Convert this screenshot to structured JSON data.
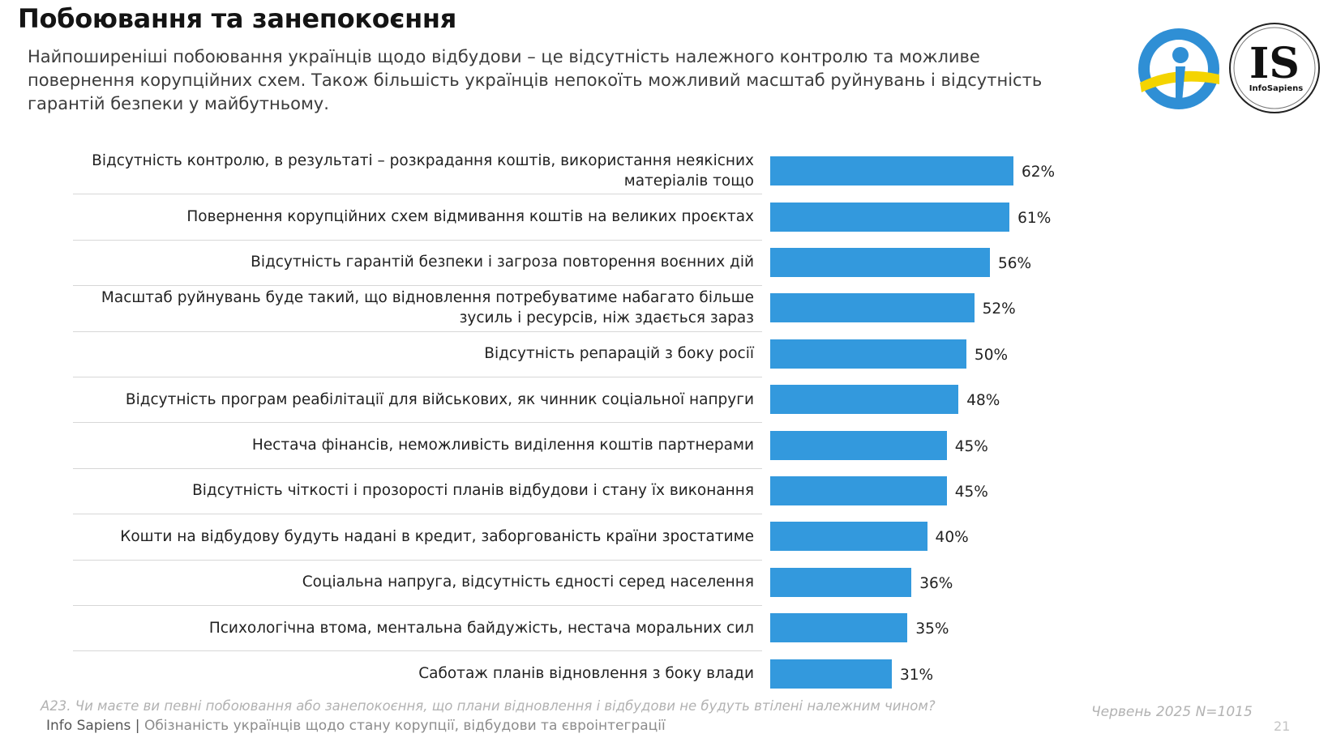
{
  "header": {
    "title": "Побоювання та занепокоєння",
    "subtitle": "Найпоширеніші побоювання українців щодо відбудови – це відсутність належного контролю та можливе повернення корупційних схем. Також більшість українців непокоїть можливий масштаб руйнувань і відсутність гарантій безпеки у майбутньому."
  },
  "logos": {
    "right_logo_letters": "IS",
    "right_logo_caption": "InfoSapiens"
  },
  "colors": {
    "bar": "#3399dd",
    "logo_blue": "#2f8fd5",
    "logo_yellow": "#f4d400"
  },
  "chart_data": {
    "type": "bar",
    "orientation": "horizontal",
    "categories": [
      "Відсутність контролю, в результаті – розкрадання коштів, використання неякісних матеріалів тощо",
      "Повернення корупційних схем відмивання коштів на великих проєктах",
      "Відсутність гарантій безпеки і загроза повторення воєнних дій",
      "Масштаб руйнувань буде такий, що відновлення потребуватиме набагато більше зусиль і ресурсів, ніж здається зараз",
      "Відсутність репарацій з боку росії",
      "Відсутність програм реабілітації для військових, як чинник соціальної напруги",
      "Нестача фінансів, неможливість виділення коштів партнерами",
      "Відсутність чіткості і прозорості планів відбудови і стану їх виконання",
      "Кошти на відбудову будуть надані в кредит, заборгованість країни зростатиме",
      "Соціальна напруга, відсутність єдності серед населення",
      "Психологічна втома, ментальна байдужість, нестача моральних сил",
      "Саботаж планів відновлення з боку влади"
    ],
    "label_lines": [
      [
        "Відсутність контролю, в результаті – розкрадання коштів, використання неякісних",
        "матеріалів тощо"
      ],
      [
        "Повернення корупційних схем відмивання коштів на великих проєктах"
      ],
      [
        "Відсутність гарантій безпеки і загроза повторення воєнних дій"
      ],
      [
        "Масштаб руйнувань буде такий, що відновлення потребуватиме набагато більше",
        "зусиль і ресурсів, ніж здається зараз"
      ],
      [
        "Відсутність репарацій з боку росії"
      ],
      [
        "Відсутність програм реабілітації для військових, як чинник соціальної напруги"
      ],
      [
        "Нестача фінансів, неможливість виділення коштів партнерами"
      ],
      [
        "Відсутність чіткості і прозорості планів відбудови і стану їх виконання"
      ],
      [
        "Кошти на відбудову будуть надані в кредит, заборгованість країни зростатиме"
      ],
      [
        "Соціальна напруга, відсутність єдності серед населення"
      ],
      [
        "Психологічна втома, ментальна байдужість, нестача моральних сил"
      ],
      [
        "Саботаж планів відновлення з боку влади"
      ]
    ],
    "values": [
      62,
      61,
      56,
      52,
      50,
      48,
      45,
      45,
      40,
      36,
      35,
      31
    ],
    "value_labels": [
      "62%",
      "61%",
      "56%",
      "52%",
      "50%",
      "48%",
      "45%",
      "45%",
      "40%",
      "36%",
      "35%",
      "31%"
    ],
    "unit": "%",
    "xlim": [
      0,
      100
    ],
    "grid": false,
    "legend": "none"
  },
  "footer": {
    "question": "А23. Чи маєте ви певні побоювання або занепокоєння, що плани відновлення і відбудови не будуть втілені належним чином?",
    "brand": "Info Sapiens",
    "separator": "|",
    "report": "Обізнаність українців щодо стану корупції, відбудови та євроінтеграції",
    "date_sample": "Червень 2025 N=1015",
    "page_number": "21"
  }
}
